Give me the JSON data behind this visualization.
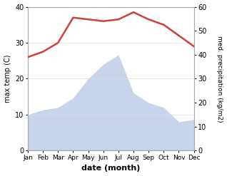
{
  "months": [
    "Jan",
    "Feb",
    "Mar",
    "Apr",
    "May",
    "Jun",
    "Jul",
    "Aug",
    "Sep",
    "Oct",
    "Nov",
    "Dec"
  ],
  "max_temp": [
    26.0,
    27.5,
    30.0,
    37.0,
    36.5,
    36.0,
    36.5,
    38.5,
    36.5,
    35.0,
    32.0,
    29.0
  ],
  "precipitation": [
    15,
    17,
    18,
    22,
    30,
    36,
    40,
    24,
    20,
    18,
    12,
    13
  ],
  "temp_color": "#cc4040",
  "precip_fill_color": "#c8d4ea",
  "temp_ylim": [
    0,
    40
  ],
  "precip_ylim": [
    0,
    60
  ],
  "temp_yticks": [
    0,
    10,
    20,
    30,
    40
  ],
  "precip_yticks": [
    0,
    10,
    20,
    30,
    40,
    50,
    60
  ],
  "xlabel": "date (month)",
  "ylabel_left": "max temp (C)",
  "ylabel_right": "med. precipitation (kg/m2)",
  "bg_color": "#ffffff",
  "grid_color": "#dddddd"
}
